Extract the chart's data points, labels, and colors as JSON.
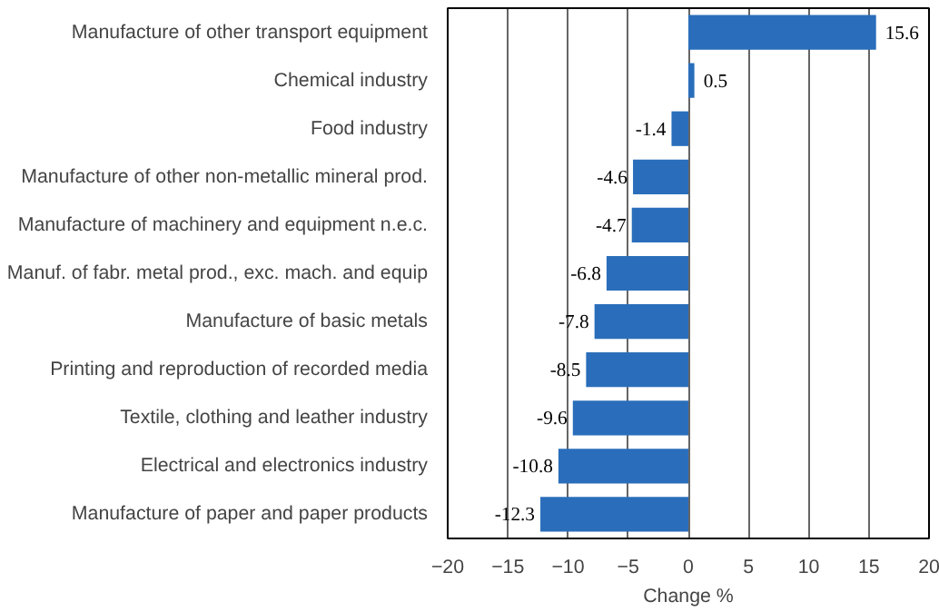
{
  "chart_data": {
    "type": "bar",
    "orientation": "horizontal",
    "xlabel": "Change %",
    "categories": [
      "Manufacture of other transport equipment",
      "Chemical industry",
      "Food industry",
      "Manufacture of other non-metallic mineral prod.",
      "Manufacture of machinery and equipment n.e.c.",
      "Manuf. of fabr. metal prod., exc. mach. and equip",
      "Manufacture of basic metals",
      "Printing and reproduction of recorded media",
      "Textile, clothing and leather industry",
      "Electrical and electronics industry",
      "Manufacture of paper and paper products"
    ],
    "values": [
      15.6,
      0.5,
      -1.4,
      -4.6,
      -4.7,
      -6.8,
      -7.8,
      -8.5,
      -9.6,
      -10.8,
      -12.3
    ],
    "color": "#2a6ebb",
    "xlim": [
      -20,
      20
    ],
    "xticks": [
      -20,
      -15,
      -10,
      -5,
      0,
      5,
      10,
      15,
      20
    ],
    "grid": "x",
    "data_labels": true
  }
}
